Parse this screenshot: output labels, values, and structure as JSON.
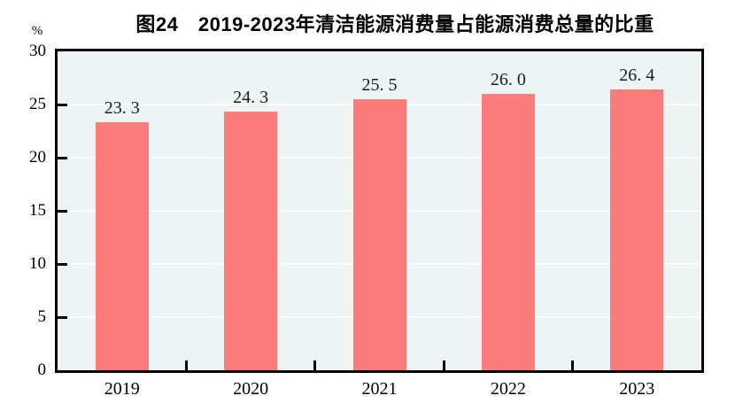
{
  "figure": {
    "title": "图24　2019-2023年清洁能源消费量占能源消费总量的比重",
    "unit_label": "%"
  },
  "chart_data": {
    "type": "bar",
    "title": "图24　2019-2023年清洁能源消费量占能源消费总量的比重",
    "categories": [
      "2019",
      "2020",
      "2021",
      "2022",
      "2023"
    ],
    "values": [
      23.3,
      24.3,
      25.5,
      26.0,
      26.4
    ],
    "display_labels": [
      "23. 3",
      "24. 3",
      "25. 5",
      "26. 0",
      "26. 4"
    ],
    "xlabel": "",
    "ylabel": "%",
    "ylim": [
      0,
      30
    ],
    "yticks": [
      0,
      5,
      10,
      15,
      20,
      25,
      30
    ],
    "grid": "horizontal",
    "legend": "none",
    "colors": {
      "bar": "#FC7C7C",
      "plot_background": "#ECF4F4",
      "gridline": "#FFFFFF",
      "axis": "#000000",
      "text": "#000000"
    }
  }
}
